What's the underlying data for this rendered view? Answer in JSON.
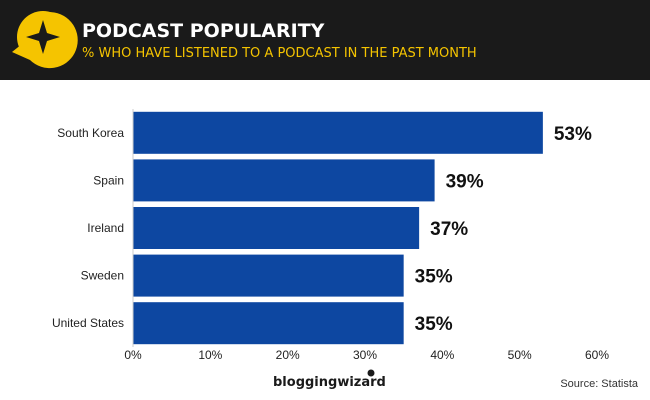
{
  "header": {
    "title": "PODCAST POPULARITY",
    "subtitle": "% WHO HAVE LISTENED TO A PODCAST IN THE PAST MONTH",
    "icon": "star-speech-bubble-icon",
    "background": "#1a1a1a",
    "accent": "#f5c400"
  },
  "chart_data": {
    "type": "bar",
    "orientation": "horizontal",
    "categories": [
      "South Korea",
      "Spain",
      "Ireland",
      "Sweden",
      "United States"
    ],
    "values": [
      53,
      39,
      37,
      35,
      35
    ],
    "data_labels": [
      "53%",
      "39%",
      "37%",
      "35%",
      "35%"
    ],
    "xlim": [
      0,
      60
    ],
    "ticks": [
      0,
      10,
      20,
      30,
      40,
      50,
      60
    ],
    "tick_labels": [
      "0%",
      "10%",
      "20%",
      "30%",
      "40%",
      "50%",
      "60%"
    ],
    "bar_color": "#0d47a1",
    "grid": false,
    "legend": "none"
  },
  "footer": {
    "brand": "bloggingwizard",
    "source": "Source: Statista"
  }
}
